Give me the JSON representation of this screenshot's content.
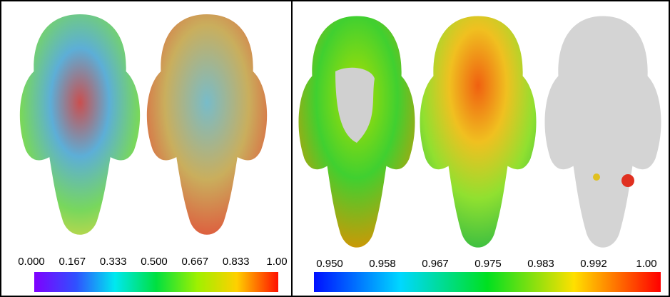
{
  "panels": [
    {
      "colorbar": {
        "ticks": [
          "0.000",
          "0.167",
          "0.333",
          "0.500",
          "0.667",
          "0.833",
          "1.00"
        ]
      }
    },
    {
      "colorbar": {
        "ticks": [
          "0.950",
          "0.958",
          "0.967",
          "0.975",
          "0.983",
          "0.992",
          "1.00"
        ]
      }
    }
  ]
}
